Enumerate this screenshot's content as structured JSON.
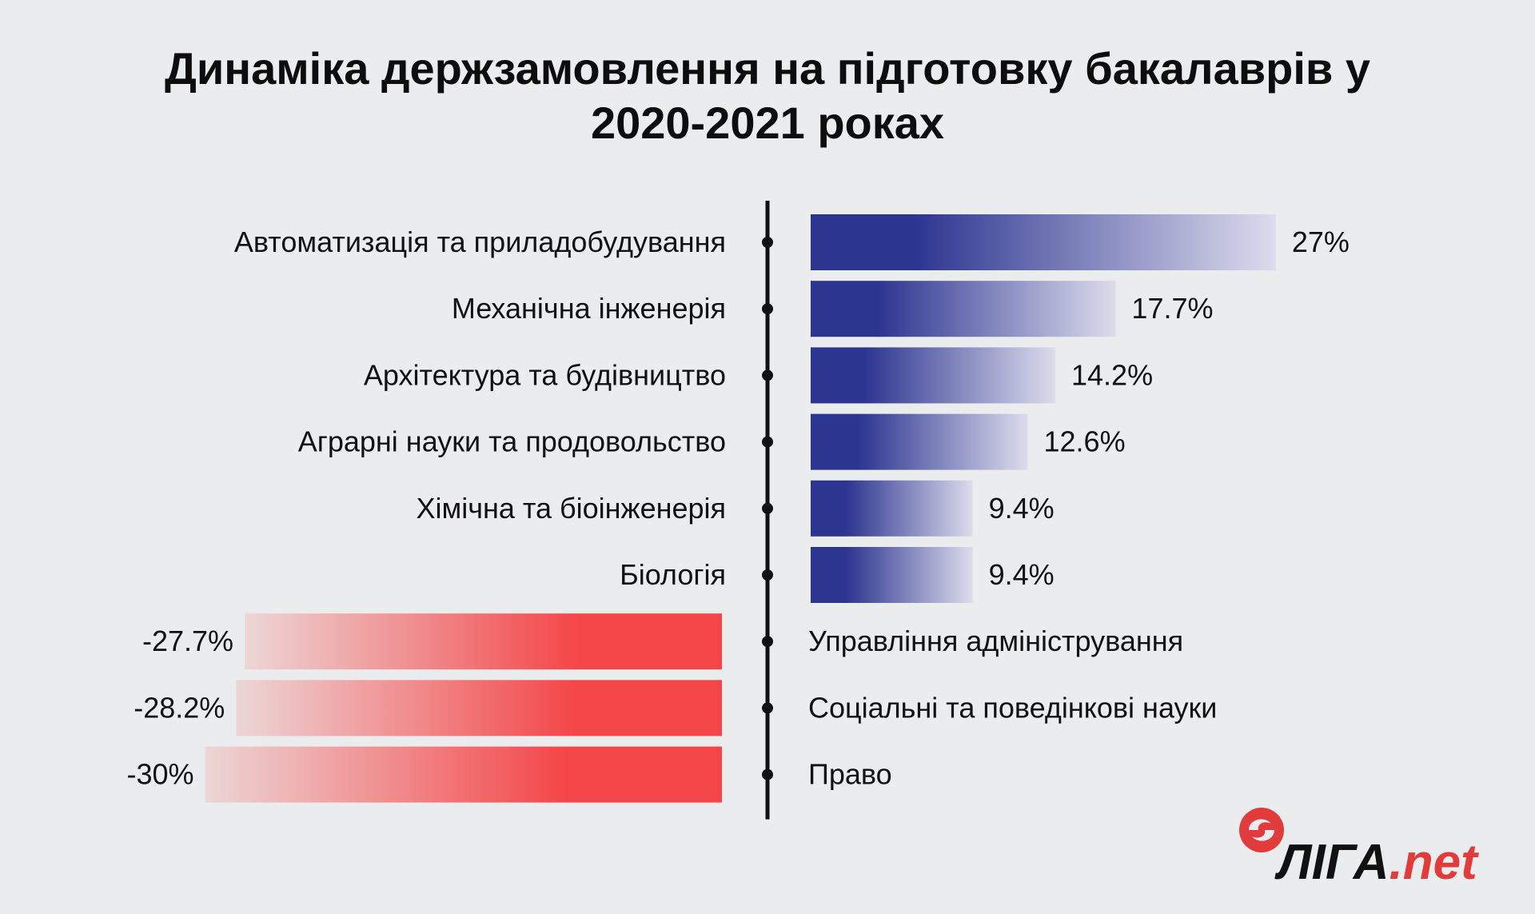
{
  "title": {
    "line1": "Динаміка держзамовлення на підготовку бакалаврів у",
    "line2": "2020-2021 роках"
  },
  "chart_data": {
    "type": "bar",
    "orientation": "horizontal-diverging",
    "categories": [
      "Автоматизація та приладобудування",
      "Механічна інженерія",
      "Архітектура та будівництво",
      "Аграрні науки та продовольство",
      "Хімічна та біоінженерія",
      "Біологія",
      "Управління адміністрування",
      "Соціальні та поведінкові науки",
      "Право"
    ],
    "values": [
      27,
      17.7,
      14.2,
      12.6,
      9.4,
      9.4,
      -27.7,
      -28.2,
      -30
    ],
    "value_labels": [
      "27%",
      "17.7%",
      "14.2%",
      "12.6%",
      "9.4%",
      "9.4%",
      "-27.7%",
      "-28.2%",
      "-30%"
    ],
    "unit": "%",
    "grid": false,
    "legend": "none",
    "colors": {
      "positive_dark": "#2c3590",
      "positive_light": "#dcdcec",
      "negative_dark": "#f44648",
      "negative_light": "#edd6d6",
      "axis": "#111111"
    }
  },
  "logo": {
    "main": "ЛІГА",
    "suffix": ".net",
    "icon": "liga-swirl-icon",
    "colors": {
      "icon": "#e23b3b",
      "text": "#111111",
      "suffix": "#e23b3b"
    }
  }
}
